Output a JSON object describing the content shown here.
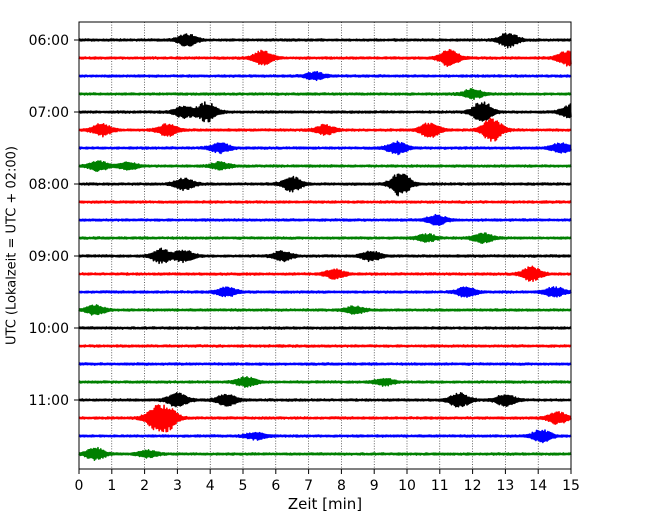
{
  "chart_data": {
    "type": "line",
    "title": "",
    "xlabel": "Zeit  [min]",
    "ylabel": "UTC (Lokalzeit = UTC + 02:00)",
    "xlim": [
      0,
      15
    ],
    "xticks": [
      0,
      1,
      2,
      3,
      4,
      5,
      6,
      7,
      8,
      9,
      10,
      11,
      12,
      13,
      14,
      15
    ],
    "y_tick_labels": [
      "06:00",
      "07:00",
      "08:00",
      "09:00",
      "10:00",
      "11:00"
    ],
    "y_tick_rows": [
      0,
      4,
      8,
      12,
      16,
      20
    ],
    "grid": "vertical dotted at each minute",
    "trace_interval_minutes": 15,
    "trace_color_cycle": [
      "#000000",
      "#ff0000",
      "#0000ff",
      "#008000"
    ],
    "traces": [
      {
        "start": "06:00",
        "color": "#000000",
        "events": [
          [
            3.3,
            0.5
          ],
          [
            13.1,
            0.6
          ]
        ]
      },
      {
        "start": "06:15",
        "color": "#ff0000",
        "events": [
          [
            5.6,
            0.6
          ],
          [
            11.3,
            0.7
          ],
          [
            14.9,
            0.6
          ]
        ]
      },
      {
        "start": "06:30",
        "color": "#0000ff",
        "events": [
          [
            7.2,
            0.3
          ]
        ]
      },
      {
        "start": "06:45",
        "color": "#008000",
        "events": [
          [
            12.0,
            0.4
          ]
        ]
      },
      {
        "start": "07:00",
        "color": "#000000",
        "events": [
          [
            3.2,
            0.5
          ],
          [
            3.9,
            0.8
          ],
          [
            12.3,
            0.9
          ],
          [
            15.0,
            0.6
          ]
        ]
      },
      {
        "start": "07:15",
        "color": "#ff0000",
        "events": [
          [
            0.7,
            0.5
          ],
          [
            2.7,
            0.5
          ],
          [
            7.5,
            0.4
          ],
          [
            10.7,
            0.6
          ],
          [
            12.6,
            1.0
          ]
        ]
      },
      {
        "start": "07:30",
        "color": "#0000ff",
        "events": [
          [
            4.3,
            0.4
          ],
          [
            9.7,
            0.5
          ],
          [
            14.7,
            0.4
          ]
        ]
      },
      {
        "start": "07:45",
        "color": "#008000",
        "events": [
          [
            0.6,
            0.4
          ],
          [
            1.5,
            0.3
          ],
          [
            4.3,
            0.3
          ]
        ]
      },
      {
        "start": "08:00",
        "color": "#000000",
        "events": [
          [
            3.2,
            0.5
          ],
          [
            6.5,
            0.6
          ],
          [
            9.8,
            1.0
          ]
        ]
      },
      {
        "start": "08:15",
        "color": "#ff0000",
        "events": []
      },
      {
        "start": "08:30",
        "color": "#0000ff",
        "events": [
          [
            10.9,
            0.4
          ]
        ]
      },
      {
        "start": "08:45",
        "color": "#008000",
        "events": [
          [
            10.6,
            0.3
          ],
          [
            12.3,
            0.4
          ]
        ]
      },
      {
        "start": "09:00",
        "color": "#000000",
        "events": [
          [
            2.5,
            0.6
          ],
          [
            3.2,
            0.5
          ],
          [
            6.2,
            0.4
          ],
          [
            8.9,
            0.4
          ]
        ]
      },
      {
        "start": "09:15",
        "color": "#ff0000",
        "events": [
          [
            7.8,
            0.4
          ],
          [
            13.8,
            0.6
          ]
        ]
      },
      {
        "start": "09:30",
        "color": "#0000ff",
        "events": [
          [
            4.5,
            0.4
          ],
          [
            11.8,
            0.4
          ],
          [
            14.5,
            0.4
          ]
        ]
      },
      {
        "start": "09:45",
        "color": "#008000",
        "events": [
          [
            0.5,
            0.4
          ],
          [
            8.4,
            0.3
          ]
        ]
      },
      {
        "start": "10:00",
        "color": "#000000",
        "events": []
      },
      {
        "start": "10:15",
        "color": "#ff0000",
        "events": []
      },
      {
        "start": "10:30",
        "color": "#0000ff",
        "events": []
      },
      {
        "start": "10:45",
        "color": "#008000",
        "events": [
          [
            5.1,
            0.4
          ],
          [
            9.3,
            0.3
          ]
        ]
      },
      {
        "start": "11:00",
        "color": "#000000",
        "events": [
          [
            3.0,
            0.6
          ],
          [
            4.5,
            0.5
          ],
          [
            11.6,
            0.6
          ],
          [
            13.0,
            0.5
          ]
        ]
      },
      {
        "start": "11:15",
        "color": "#ff0000",
        "events": [
          [
            2.3,
            0.8
          ],
          [
            2.7,
            0.9
          ],
          [
            14.6,
            0.5
          ]
        ]
      },
      {
        "start": "11:30",
        "color": "#0000ff",
        "events": [
          [
            5.4,
            0.3
          ],
          [
            14.1,
            0.5
          ]
        ]
      },
      {
        "start": "11:45",
        "color": "#008000",
        "events": [
          [
            0.5,
            0.5
          ],
          [
            2.1,
            0.3
          ]
        ]
      }
    ]
  }
}
